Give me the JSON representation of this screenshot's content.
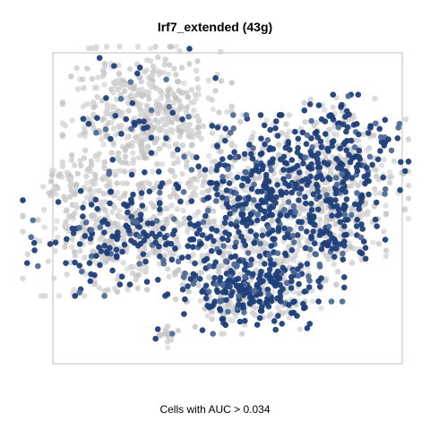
{
  "chart_data": {
    "type": "scatter",
    "title": "Irf7_extended (43g)",
    "xlabel": "Cells with AUC > 0.034",
    "ylabel": "",
    "grid": false,
    "axes_ticks": false,
    "colors": {
      "background_cell": "#c8c8c8",
      "highlighted_cell": "#1f3f7a",
      "frame": "#bdbdbd"
    },
    "clusters": [
      {
        "name": "top-left cluster",
        "center": [
          -0.23,
          0.28
        ],
        "spread": [
          0.11,
          0.11
        ],
        "count": 520,
        "highlight_fraction": 0.1
      },
      {
        "name": "far-left arm",
        "center": [
          -0.44,
          0.05
        ],
        "spread": [
          0.04,
          0.04
        ],
        "count": 60,
        "highlight_fraction": 0.0
      },
      {
        "name": "left cluster",
        "center": [
          -0.3,
          -0.14
        ],
        "spread": [
          0.13,
          0.1
        ],
        "count": 560,
        "highlight_fraction": 0.28
      },
      {
        "name": "central cluster",
        "center": [
          0.07,
          -0.05
        ],
        "spread": [
          0.12,
          0.15
        ],
        "count": 700,
        "highlight_fraction": 0.48
      },
      {
        "name": "right cluster",
        "center": [
          0.32,
          0.11
        ],
        "spread": [
          0.09,
          0.11
        ],
        "count": 430,
        "highlight_fraction": 0.42
      },
      {
        "name": "lower-central cluster",
        "center": [
          0.07,
          -0.34
        ],
        "spread": [
          0.09,
          0.07
        ],
        "count": 360,
        "highlight_fraction": 0.52
      },
      {
        "name": "right-lower cluster",
        "center": [
          0.3,
          -0.12
        ],
        "spread": [
          0.07,
          0.07
        ],
        "count": 180,
        "highlight_fraction": 0.4
      },
      {
        "name": "small bottom island",
        "center": [
          -0.18,
          -0.5
        ],
        "spread": [
          0.025,
          0.02
        ],
        "count": 25,
        "highlight_fraction": 0.25
      }
    ],
    "xlim": [
      -0.5,
      0.5
    ],
    "ylim": [
      -0.6,
      0.5
    ]
  }
}
